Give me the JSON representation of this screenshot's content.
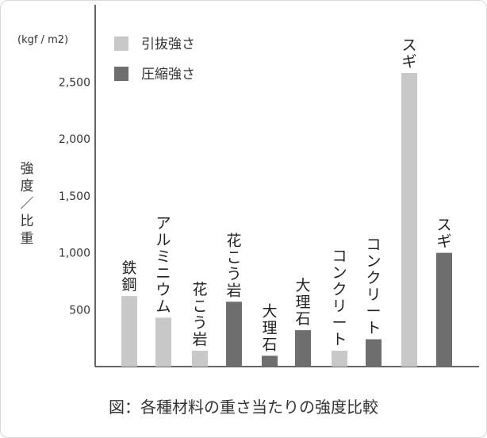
{
  "chart_data": {
    "type": "bar",
    "unit_label": "(kgf / m2)",
    "ylabel": "強度／比重",
    "caption": "図：各種材料の重さ当たりの強度比較",
    "ylim": [
      0,
      3000
    ],
    "yticks": [
      "500",
      "1,000",
      "1,500",
      "2,000",
      "2,500"
    ],
    "ytick_values": [
      500,
      1000,
      1500,
      2000,
      2500
    ],
    "legend": [
      {
        "name": "引抜強さ",
        "color": "#c8c8c8"
      },
      {
        "name": "圧縮強さ",
        "color": "#6e6e6e"
      }
    ],
    "bars": [
      {
        "label": "鉄鋼",
        "series": "引抜強さ",
        "value": 620
      },
      {
        "label": "アルミニウム",
        "series": "引抜強さ",
        "value": 430
      },
      {
        "label": "花こう岩",
        "series": "引抜強さ",
        "value": 140
      },
      {
        "label": "花こう岩",
        "series": "圧縮強さ",
        "value": 570
      },
      {
        "label": "大理石",
        "series": "圧縮強さ",
        "value": 95
      },
      {
        "label": "大理石",
        "series": "圧縮強さ",
        "value": 320
      },
      {
        "label": "コンクリート",
        "series": "引抜強さ",
        "value": 140
      },
      {
        "label": "コンクリート",
        "series": "圧縮強さ",
        "value": 240
      },
      {
        "label": "スギ",
        "series": "引抜強さ",
        "value": 2580
      },
      {
        "label": "スギ",
        "series": "圧縮強さ",
        "value": 1000
      }
    ]
  }
}
